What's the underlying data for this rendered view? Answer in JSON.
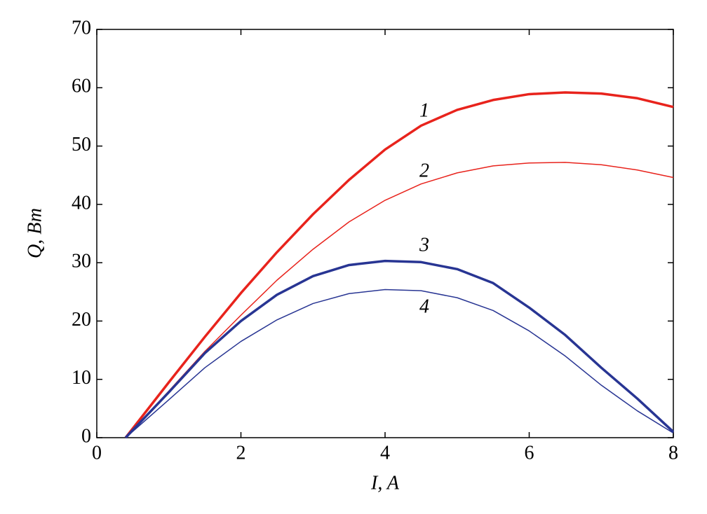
{
  "chart_data": {
    "type": "line",
    "xlabel": "I, A",
    "ylabel": "Q, Вт",
    "x": [
      0.4,
      1,
      1.5,
      2,
      2.5,
      3,
      3.5,
      4,
      4.5,
      5,
      5.5,
      6,
      6.5,
      7,
      7.5,
      8
    ],
    "series": [
      {
        "name": "1",
        "color": "#e8231c",
        "linewidth": 3.5,
        "values": [
          0,
          9.5,
          17.3,
          24.8,
          31.8,
          38.3,
          44.2,
          49.4,
          53.5,
          56.2,
          57.9,
          58.9,
          59.2,
          59.0,
          58.2,
          56.7
        ]
      },
      {
        "name": "2",
        "color": "#e8231c",
        "linewidth": 1.5,
        "values": [
          0,
          8,
          14.8,
          21,
          27,
          32.3,
          37,
          40.7,
          43.5,
          45.4,
          46.6,
          47.1,
          47.2,
          46.8,
          45.9,
          44.6
        ]
      },
      {
        "name": "3",
        "color": "#283593",
        "linewidth": 3.5,
        "values": [
          0,
          7.8,
          14.5,
          20,
          24.5,
          27.7,
          29.6,
          30.3,
          30.1,
          28.9,
          26.5,
          22.3,
          17.6,
          12,
          6.7,
          1
        ]
      },
      {
        "name": "4",
        "color": "#283593",
        "linewidth": 1.5,
        "values": [
          0,
          6.5,
          12,
          16.5,
          20.2,
          23,
          24.7,
          25.4,
          25.2,
          24,
          21.8,
          18.3,
          14,
          9,
          4.6,
          0.8
        ]
      }
    ],
    "xlim": [
      0,
      8
    ],
    "xticks": [
      0,
      2,
      4,
      6,
      8
    ],
    "ylim": [
      0,
      70
    ],
    "yticks": [
      0,
      10,
      20,
      30,
      40,
      50,
      60,
      70
    ],
    "grid": false
  }
}
